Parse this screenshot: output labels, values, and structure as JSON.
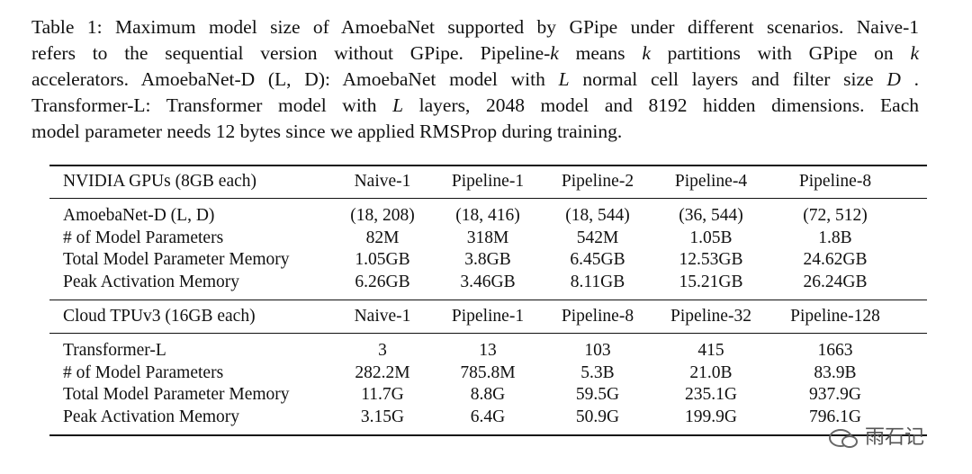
{
  "caption": {
    "lines": [
      [
        "Table 1: Maximum model size of AmoebaNet supported by GPipe under different scenarios. Naive-1"
      ],
      [
        "refers to the sequential version without GPipe.  Pipeline-",
        {
          "text": "k",
          "italic": true
        },
        " means ",
        {
          "text": "k",
          "italic": true
        },
        " partitions with GPipe on ",
        {
          "text": "k",
          "italic": true
        }
      ],
      [
        "accelerators. AmoebaNet-D (L, D): AmoebaNet model with ",
        {
          "text": "L",
          "italic": true
        },
        " normal cell layers and filter size ",
        {
          "text": "D",
          "italic": true
        },
        " ."
      ],
      [
        "Transformer-L: Transformer model with ",
        {
          "text": "L",
          "italic": true
        },
        " layers, 2048 model and 8192 hidden dimensions. Each"
      ],
      [
        "model parameter needs 12 bytes since we applied RMSProp during training."
      ]
    ]
  },
  "table": {
    "sections": [
      {
        "header": [
          "NVIDIA GPUs (8GB each)",
          "Naive-1",
          "Pipeline-1",
          "Pipeline-2",
          "Pipeline-4",
          "Pipeline-8"
        ],
        "rows": [
          [
            "AmoebaNet-D (L, D)",
            "(18, 208)",
            "(18, 416)",
            "(18, 544)",
            "(36, 544)",
            "(72, 512)"
          ],
          [
            "# of Model Parameters",
            "82M",
            "318M",
            "542M",
            "1.05B",
            "1.8B"
          ],
          [
            "Total Model Parameter Memory",
            "1.05GB",
            "3.8GB",
            "6.45GB",
            "12.53GB",
            "24.62GB"
          ],
          [
            "Peak Activation Memory",
            "6.26GB",
            "3.46GB",
            "8.11GB",
            "15.21GB",
            "26.24GB"
          ]
        ]
      },
      {
        "header": [
          "Cloud TPUv3 (16GB each)",
          "Naive-1",
          "Pipeline-1",
          "Pipeline-8",
          "Pipeline-32",
          "Pipeline-128"
        ],
        "rows": [
          [
            "Transformer-L",
            "3",
            "13",
            "103",
            "415",
            "1663"
          ],
          [
            "# of Model Parameters",
            "282.2M",
            "785.8M",
            "5.3B",
            "21.0B",
            "83.9B"
          ],
          [
            "Total Model Parameter Memory",
            "11.7G",
            "8.8G",
            "59.5G",
            "235.1G",
            "937.9G"
          ],
          [
            "Peak Activation Memory",
            "3.15G",
            "6.4G",
            "50.9G",
            "199.9G",
            "796.1G"
          ]
        ]
      }
    ]
  },
  "watermark": "雨石记"
}
